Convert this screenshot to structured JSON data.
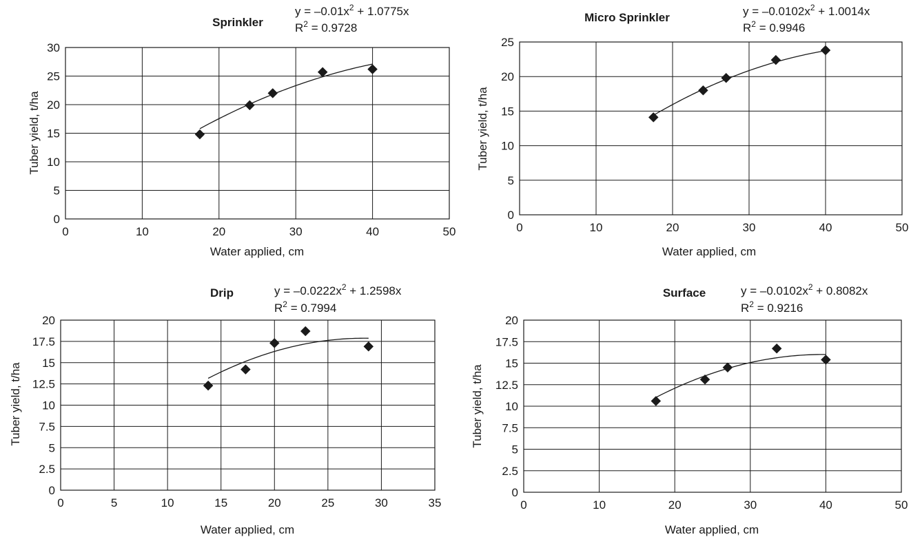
{
  "chart_data": [
    {
      "type": "scatter",
      "title": "Sprinkler",
      "xlabel": "Water applied, cm",
      "ylabel": "Tuber yield, t/ha",
      "xlim": [
        0,
        50
      ],
      "ylim": [
        0,
        30
      ],
      "xticks": [
        "0",
        "10",
        "20",
        "30",
        "40",
        "50"
      ],
      "yticks": [
        "0",
        "5",
        "10",
        "15",
        "20",
        "25",
        "30"
      ],
      "grid": true,
      "marker": "diamond",
      "color": "#1a1a1a",
      "points": [
        [
          17.5,
          14.8
        ],
        [
          24.0,
          19.9
        ],
        [
          27.0,
          22.0
        ],
        [
          33.5,
          25.7
        ],
        [
          40.0,
          26.2
        ]
      ],
      "trendline": {
        "type": "polynomial",
        "a": -0.01,
        "b": 1.0775,
        "c": 0,
        "from": 17.5,
        "to": 40.0
      },
      "equation_prefix": "y = –0.01x",
      "equation_suffix": " + 1.0775x",
      "r2_prefix": "R",
      "r2_suffix": " = 0.9728",
      "superscript": "2"
    },
    {
      "type": "scatter",
      "title": "Micro Sprinkler",
      "xlabel": "Water applied, cm",
      "ylabel": "Tuber yield, t/ha",
      "xlim": [
        0,
        50
      ],
      "ylim": [
        0,
        25
      ],
      "xticks": [
        "0",
        "10",
        "20",
        "30",
        "40",
        "50"
      ],
      "yticks": [
        "0",
        "5",
        "10",
        "15",
        "20",
        "25"
      ],
      "grid": true,
      "marker": "diamond",
      "color": "#1a1a1a",
      "points": [
        [
          17.5,
          14.1
        ],
        [
          24.0,
          18.0
        ],
        [
          27.0,
          19.8
        ],
        [
          33.5,
          22.4
        ],
        [
          40.0,
          23.8
        ]
      ],
      "trendline": {
        "type": "polynomial",
        "a": -0.0102,
        "b": 1.0014,
        "c": 0,
        "from": 17.5,
        "to": 40.0
      },
      "equation_prefix": "y = –0.0102x",
      "equation_suffix": " + 1.0014x",
      "r2_prefix": "R",
      "r2_suffix": " = 0.9946",
      "superscript": "2"
    },
    {
      "type": "scatter",
      "title": "Drip",
      "xlabel": "Water applied, cm",
      "ylabel": "Tuber yield, t/ha",
      "xlim": [
        0,
        35
      ],
      "ylim": [
        0,
        20
      ],
      "xticks": [
        "0",
        "5",
        "10",
        "15",
        "20",
        "25",
        "30",
        "35"
      ],
      "yticks": [
        "0",
        "2.5",
        "5",
        "7.5",
        "10",
        "12.5",
        "15",
        "17.5",
        "20"
      ],
      "grid": true,
      "marker": "diamond",
      "color": "#1a1a1a",
      "points": [
        [
          13.8,
          12.3
        ],
        [
          17.3,
          14.2
        ],
        [
          20.0,
          17.3
        ],
        [
          22.9,
          18.7
        ],
        [
          28.8,
          16.9
        ]
      ],
      "trendline": {
        "type": "polynomial",
        "a": -0.0222,
        "b": 1.2598,
        "c": 0,
        "from": 13.8,
        "to": 28.8
      },
      "equation_prefix": "y = –0.0222x",
      "equation_suffix": " + 1.2598x",
      "r2_prefix": "R",
      "r2_suffix": " = 0.7994",
      "superscript": "2"
    },
    {
      "type": "scatter",
      "title": "Surface",
      "xlabel": "Water applied, cm",
      "ylabel": "Tuber yield, t/ha",
      "xlim": [
        0,
        50
      ],
      "ylim": [
        0,
        20
      ],
      "xticks": [
        "0",
        "10",
        "20",
        "30",
        "40",
        "50"
      ],
      "yticks": [
        "0",
        "2.5",
        "5",
        "7.5",
        "10",
        "12.5",
        "15",
        "17.5",
        "20"
      ],
      "grid": true,
      "marker": "diamond",
      "color": "#1a1a1a",
      "points": [
        [
          17.5,
          10.6
        ],
        [
          24.0,
          13.1
        ],
        [
          27.0,
          14.5
        ],
        [
          33.5,
          16.7
        ],
        [
          40.0,
          15.4
        ]
      ],
      "trendline": {
        "type": "polynomial",
        "a": -0.0102,
        "b": 0.8082,
        "c": 0,
        "from": 17.5,
        "to": 40.0
      },
      "equation_prefix": "y = –0.0102x",
      "equation_suffix": " + 0.8082x",
      "r2_prefix": "R",
      "r2_suffix": " = 0.9216",
      "superscript": "2"
    }
  ]
}
